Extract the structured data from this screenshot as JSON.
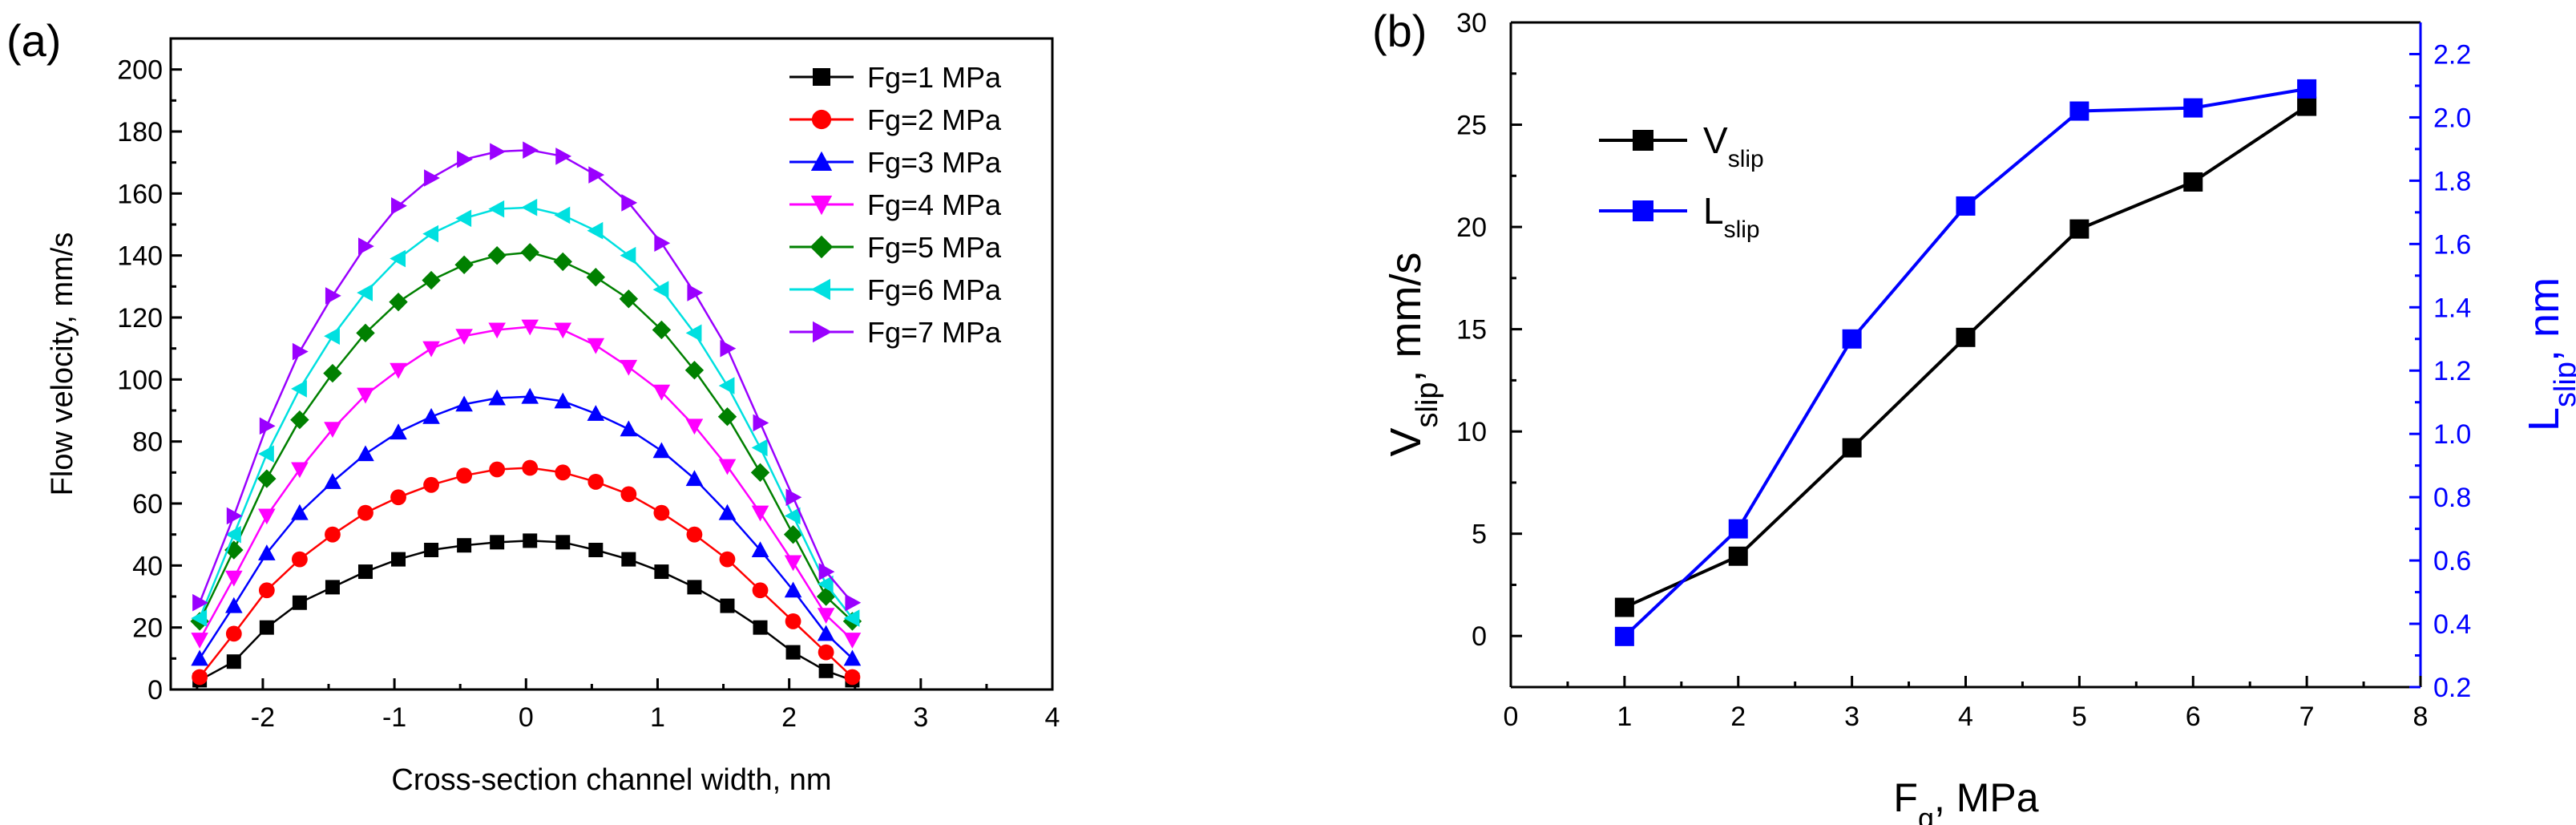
{
  "chart_data": [
    {
      "panel": "(a)",
      "type": "line",
      "title": "",
      "xlabel": "Cross-section channel width,  nm",
      "ylabel": "Flow velocity, mm/s",
      "xlim": [
        -2.7,
        4
      ],
      "ylim": [
        0,
        210
      ],
      "xticks": [
        -2,
        -1,
        0,
        1,
        2,
        3,
        4
      ],
      "yticks": [
        0,
        20,
        40,
        60,
        80,
        100,
        120,
        140,
        160,
        180,
        200
      ],
      "legend_position": "top-right",
      "x": [
        -2.48,
        -2.22,
        -1.97,
        -1.72,
        -1.47,
        -1.22,
        -0.97,
        -0.72,
        -0.47,
        -0.22,
        0.03,
        0.28,
        0.53,
        0.78,
        1.03,
        1.28,
        1.53,
        1.78,
        2.03,
        2.28,
        2.48
      ],
      "series": [
        {
          "name": "Fg=1 MPa",
          "color": "#000000",
          "marker": "square",
          "values": [
            3,
            9,
            20,
            28,
            33,
            38,
            42,
            45,
            46.5,
            47.5,
            48,
            47.5,
            45,
            42,
            38,
            33,
            27,
            20,
            12,
            6,
            3
          ]
        },
        {
          "name": "Fg=2 MPa",
          "color": "#ff0000",
          "marker": "circle",
          "values": [
            4,
            18,
            32,
            42,
            50,
            57,
            62,
            66,
            69,
            71,
            71.5,
            70,
            67,
            63,
            57,
            50,
            42,
            32,
            22,
            12,
            4
          ]
        },
        {
          "name": "Fg=3 MPa",
          "color": "#0000ff",
          "marker": "triangle-up",
          "values": [
            10,
            27,
            44,
            57,
            67,
            76,
            83,
            88,
            92,
            94,
            94.5,
            93,
            89,
            84,
            77,
            68,
            57,
            45,
            32,
            18,
            10
          ]
        },
        {
          "name": "Fg=4 MPa",
          "color": "#ff00ff",
          "marker": "triangle-down",
          "values": [
            16,
            36,
            56,
            71,
            84,
            95,
            103,
            110,
            114,
            116,
            117,
            116,
            111,
            104,
            96,
            85,
            72,
            57,
            41,
            24,
            16
          ]
        },
        {
          "name": "Fg=5 MPa",
          "color": "#008000",
          "marker": "diamond",
          "values": [
            22,
            45,
            68,
            87,
            102,
            115,
            125,
            132,
            137,
            140,
            141,
            138,
            133,
            126,
            116,
            103,
            88,
            70,
            50,
            30,
            22
          ]
        },
        {
          "name": "Fg=6 MPa",
          "color": "#00e0e0",
          "marker": "triangle-left",
          "values": [
            23,
            50,
            76,
            97,
            114,
            128,
            139,
            147,
            152,
            155,
            155.5,
            153,
            148,
            140,
            129,
            115,
            98,
            78,
            56,
            34,
            23
          ]
        },
        {
          "name": "Fg=7 MPa",
          "color": "#9a00ff",
          "marker": "triangle-right",
          "values": [
            28,
            56,
            85,
            109,
            127,
            143,
            156,
            165,
            171,
            173.5,
            174,
            172,
            166,
            157,
            144,
            128,
            110,
            86,
            62,
            38,
            28
          ]
        }
      ]
    },
    {
      "panel": "(b)",
      "type": "line",
      "title": "",
      "xlabel_main": "F",
      "xlabel_sub": "g",
      "xlabel_rest": ", MPa",
      "ylabel_left_main": "V",
      "ylabel_left_sub": "slip",
      "ylabel_left_rest": ", mm/s",
      "ylabel_right_main": "L",
      "ylabel_right_sub": "slip",
      "ylabel_right_rest": ", nm",
      "xlim": [
        0,
        8
      ],
      "ylim_left": [
        -2.5,
        30
      ],
      "ylim_right": [
        0.2,
        2.3
      ],
      "xticks": [
        0,
        1,
        2,
        3,
        4,
        5,
        6,
        7,
        8
      ],
      "yticks_left": [
        0,
        5,
        10,
        15,
        20,
        25,
        30
      ],
      "yticks_right": [
        0.2,
        0.4,
        0.6,
        0.8,
        1.0,
        1.2,
        1.4,
        1.6,
        1.8,
        2.0,
        2.2
      ],
      "legend_position": "top-left",
      "x": [
        1,
        2,
        3,
        4,
        5,
        6,
        7
      ],
      "series": [
        {
          "name_main": "V",
          "name_sub": "slip",
          "axis": "left",
          "color": "#000000",
          "marker": "square",
          "values": [
            1.4,
            3.9,
            9.2,
            14.6,
            19.9,
            22.2,
            25.9
          ]
        },
        {
          "name_main": "L",
          "name_sub": "slip",
          "axis": "right",
          "color": "#0000ff",
          "marker": "square",
          "values": [
            0.36,
            0.7,
            1.3,
            1.72,
            2.02,
            2.03,
            2.09
          ]
        }
      ]
    }
  ],
  "labels": {
    "panel_a": "(a)",
    "panel_b": "(b)"
  }
}
